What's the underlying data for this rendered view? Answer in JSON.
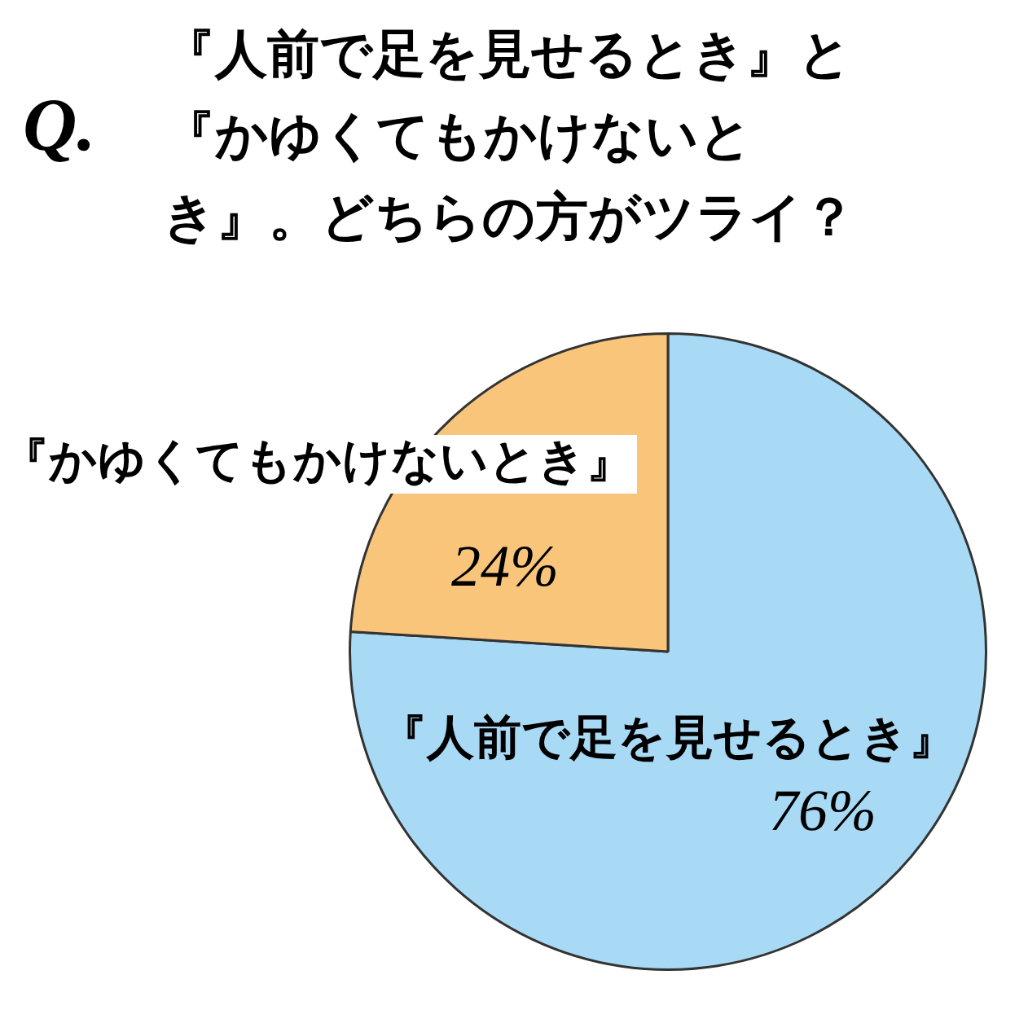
{
  "chart_data": {
    "type": "pie",
    "title": "『人前で足を見せるとき』と『かゆくてもかけないとき』。どちらの方がツライ？",
    "annotations": [
      "Q."
    ],
    "categories": [
      "『人前で足を見せるとき』",
      "『かゆくてもかけないとき』"
    ],
    "values": [
      76,
      24
    ],
    "colors": [
      "#a8daf5",
      "#f9c57a"
    ],
    "value_labels": [
      "76%",
      "24%"
    ],
    "legend": false
  }
}
